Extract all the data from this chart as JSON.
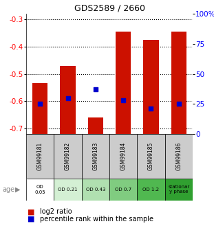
{
  "title": "GDS2589 / 2660",
  "samples": [
    "GSM99181",
    "GSM99182",
    "GSM99183",
    "GSM99184",
    "GSM99185",
    "GSM99186"
  ],
  "log2_ratio": [
    -0.535,
    -0.47,
    -0.66,
    -0.345,
    -0.375,
    -0.345
  ],
  "percentile_rank_pct": [
    25,
    30,
    37,
    28,
    21,
    25
  ],
  "age_labels": [
    "OD\n0.05",
    "OD 0.21",
    "OD 0.43",
    "OD 0.7",
    "OD 1.2",
    "stationar\ny phase"
  ],
  "age_colors": [
    "#ffffff",
    "#d4f0d4",
    "#b0e0b0",
    "#80cc80",
    "#50b850",
    "#30a030"
  ],
  "bar_color": "#cc1100",
  "dot_color": "#0000cc",
  "ylim": [
    -0.72,
    -0.28
  ],
  "yticks_left": [
    -0.7,
    -0.6,
    -0.5,
    -0.4,
    -0.3
  ],
  "yticks_right_vals": [
    0,
    25,
    50,
    75,
    100
  ],
  "yticks_right_labels": [
    "0",
    "25",
    "50",
    "75",
    "100%"
  ],
  "sample_bg_color": "#cccccc",
  "bar_width": 0.55
}
